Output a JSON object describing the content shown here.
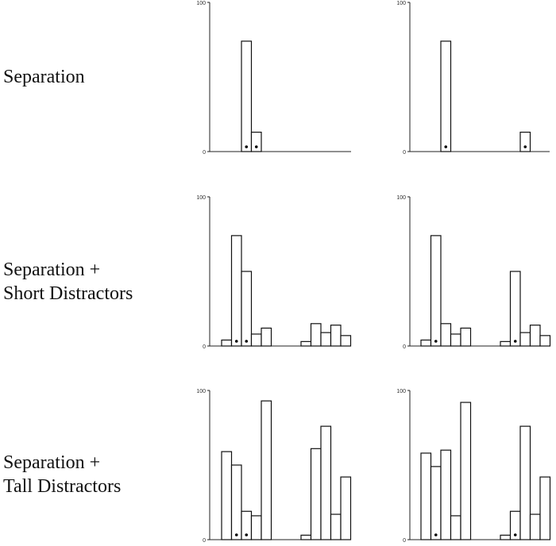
{
  "rows": [
    {
      "label": "Separation"
    },
    {
      "label": "Separation +\nShort Distractors"
    },
    {
      "label": "Separation +\nTall Distractors"
    }
  ],
  "chart_data": [
    {
      "type": "bar",
      "row": 0,
      "col": 0,
      "ylim": [
        0,
        100
      ],
      "ticks": [
        "0",
        "100"
      ],
      "values": [
        0,
        0,
        74,
        13,
        0,
        0,
        0,
        0,
        0,
        0,
        0,
        0,
        0,
        0
      ],
      "marked": [
        2,
        3
      ]
    },
    {
      "type": "bar",
      "row": 0,
      "col": 1,
      "ylim": [
        0,
        100
      ],
      "ticks": [
        "0",
        "100"
      ],
      "values": [
        0,
        0,
        74,
        0,
        0,
        0,
        0,
        0,
        0,
        0,
        13,
        0,
        0,
        0
      ],
      "marked": [
        2,
        10
      ]
    },
    {
      "type": "bar",
      "row": 1,
      "col": 0,
      "ylim": [
        0,
        100
      ],
      "ticks": [
        "0",
        "100"
      ],
      "values": [
        4,
        74,
        50,
        8,
        12,
        0,
        0,
        0,
        3,
        15,
        9,
        14,
        7,
        0
      ],
      "marked": [
        1,
        2
      ]
    },
    {
      "type": "bar",
      "row": 1,
      "col": 1,
      "ylim": [
        0,
        100
      ],
      "ticks": [
        "0",
        "100"
      ],
      "values": [
        4,
        74,
        15,
        8,
        12,
        0,
        0,
        0,
        3,
        50,
        9,
        14,
        7,
        0
      ],
      "marked": [
        1,
        9
      ]
    },
    {
      "type": "bar",
      "row": 2,
      "col": 0,
      "ylim": [
        0,
        100
      ],
      "ticks": [
        "0",
        "100"
      ],
      "values": [
        59,
        50,
        19,
        16,
        93,
        0,
        0,
        0,
        3,
        61,
        76,
        17,
        42,
        0
      ],
      "marked": [
        1,
        2
      ]
    },
    {
      "type": "bar",
      "row": 2,
      "col": 1,
      "ylim": [
        0,
        100
      ],
      "ticks": [
        "0",
        "100"
      ],
      "values": [
        58,
        49,
        60,
        16,
        92,
        0,
        0,
        0,
        3,
        19,
        76,
        17,
        42,
        0
      ],
      "marked": [
        1,
        9
      ]
    }
  ]
}
